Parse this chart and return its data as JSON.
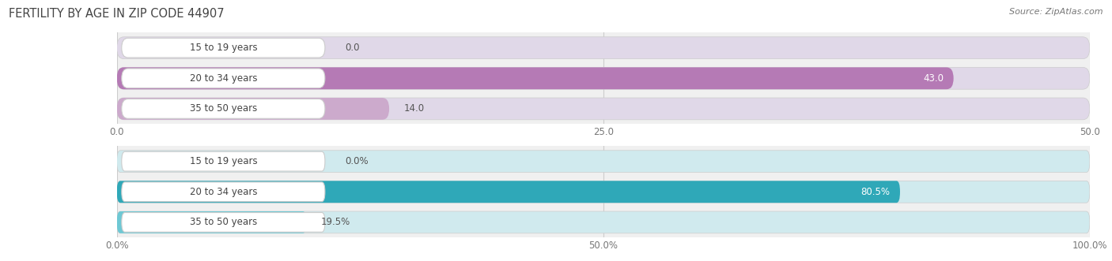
{
  "title": "FERTILITY BY AGE IN ZIP CODE 44907",
  "source": "Source: ZipAtlas.com",
  "top_chart": {
    "categories": [
      "15 to 19 years",
      "20 to 34 years",
      "35 to 50 years"
    ],
    "values": [
      0.0,
      43.0,
      14.0
    ],
    "xlim": [
      0,
      50
    ],
    "xticks": [
      0.0,
      25.0,
      50.0
    ],
    "bar_color_dark": "#b57ab5",
    "bar_color_light": "#ccaacc",
    "bar_bg_color": "#e0d8e8"
  },
  "bottom_chart": {
    "categories": [
      "15 to 19 years",
      "20 to 34 years",
      "35 to 50 years"
    ],
    "values": [
      0.0,
      80.5,
      19.5
    ],
    "xlim": [
      0,
      100
    ],
    "xticks": [
      0.0,
      50.0,
      100.0
    ],
    "bar_color_dark": "#2fa8b8",
    "bar_color_light": "#6ec8d4",
    "bar_bg_color": "#d0eaee"
  },
  "fig_bg": "#ffffff",
  "label_area_bg": "#ffffff",
  "label_fontsize": 8.5,
  "tick_fontsize": 8.5,
  "title_fontsize": 10.5,
  "category_fontsize": 8.5,
  "value_label_inside_color": "#ffffff",
  "value_label_outside_color": "#555555",
  "grid_color": "#cccccc",
  "title_color": "#444444",
  "source_color": "#777777",
  "tick_color": "#777777"
}
